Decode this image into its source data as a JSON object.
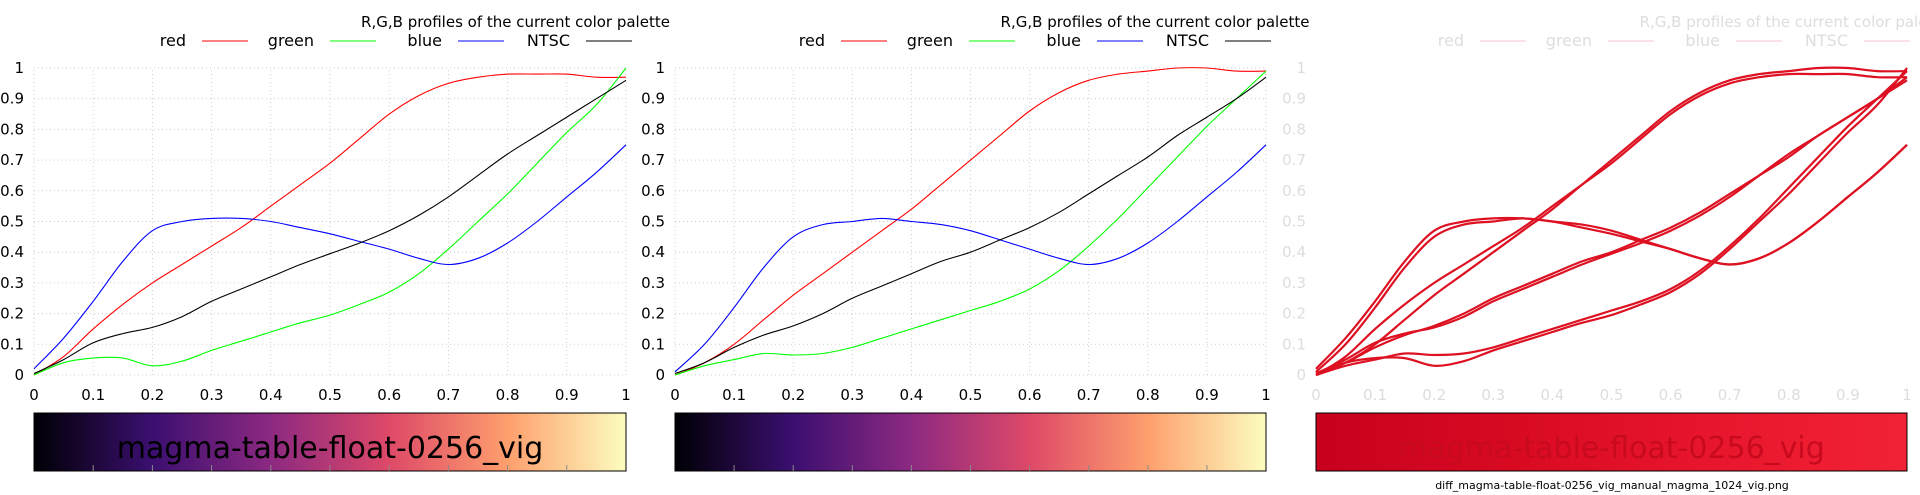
{
  "file_caption": "diff_magma-table-float-0256_vig_manual_magma_1024_vig.png",
  "colors": {
    "red": "#ff0000",
    "green": "#00ff00",
    "blue": "#0000ff",
    "ntsc": "#000000",
    "diff": "#dd1122",
    "grid": "#cccccc",
    "faded_text": "#dddddd"
  },
  "chart_data": [
    {
      "type": "line",
      "title": "R,G,B profiles of the current color palette",
      "xlabel": "",
      "ylabel": "",
      "xlim": [
        0,
        1
      ],
      "ylim": [
        0,
        1
      ],
      "grid": true,
      "legend_position": "top",
      "ticks": {
        "x": [
          "0",
          "0.1",
          "0.2",
          "0.3",
          "0.4",
          "0.5",
          "0.6",
          "0.7",
          "0.8",
          "0.9",
          "1"
        ],
        "y": [
          "0",
          "0.1",
          "0.2",
          "0.3",
          "0.4",
          "0.5",
          "0.6",
          "0.7",
          "0.8",
          "0.9",
          "1"
        ]
      },
      "x": [
        0,
        0.05,
        0.1,
        0.15,
        0.2,
        0.25,
        0.3,
        0.35,
        0.4,
        0.45,
        0.5,
        0.55,
        0.6,
        0.65,
        0.7,
        0.75,
        0.8,
        0.85,
        0.9,
        0.95,
        1
      ],
      "series": [
        {
          "name": "red",
          "color": "#ff0000",
          "values": [
            0,
            0.06,
            0.15,
            0.23,
            0.3,
            0.36,
            0.42,
            0.48,
            0.55,
            0.62,
            0.69,
            0.77,
            0.85,
            0.91,
            0.95,
            0.97,
            0.98,
            0.98,
            0.98,
            0.97,
            0.97
          ]
        },
        {
          "name": "green",
          "color": "#00ff00",
          "values": [
            0,
            0.04,
            0.055,
            0.055,
            0.03,
            0.045,
            0.08,
            0.11,
            0.14,
            0.17,
            0.195,
            0.23,
            0.27,
            0.33,
            0.41,
            0.5,
            0.59,
            0.69,
            0.79,
            0.88,
            1.0
          ]
        },
        {
          "name": "blue",
          "color": "#0000ff",
          "values": [
            0.02,
            0.12,
            0.24,
            0.37,
            0.47,
            0.5,
            0.51,
            0.51,
            0.5,
            0.48,
            0.46,
            0.435,
            0.41,
            0.38,
            0.36,
            0.38,
            0.43,
            0.5,
            0.58,
            0.66,
            0.75
          ]
        },
        {
          "name": "NTSC",
          "color": "#000000",
          "values": [
            0.005,
            0.05,
            0.105,
            0.135,
            0.155,
            0.19,
            0.24,
            0.28,
            0.32,
            0.36,
            0.395,
            0.43,
            0.47,
            0.52,
            0.58,
            0.65,
            0.72,
            0.78,
            0.84,
            0.9,
            0.96
          ]
        }
      ],
      "colorbar": {
        "label": "magma-table-float-0256_vig",
        "stops": [
          "#000004",
          "#3b0f70",
          "#8c2981",
          "#de4968",
          "#fe9f6d",
          "#fcfdbf"
        ]
      }
    },
    {
      "type": "line",
      "title": "R,G,B profiles of the current color palette",
      "xlabel": "",
      "ylabel": "",
      "xlim": [
        0,
        1
      ],
      "ylim": [
        0,
        1
      ],
      "grid": true,
      "legend_position": "top",
      "ticks": {
        "x": [
          "0",
          "0.1",
          "0.2",
          "0.3",
          "0.4",
          "0.5",
          "0.6",
          "0.7",
          "0.8",
          "0.9",
          "1"
        ],
        "y": [
          "0",
          "0.1",
          "0.2",
          "0.3",
          "0.4",
          "0.5",
          "0.6",
          "0.7",
          "0.8",
          "0.9",
          "1"
        ]
      },
      "x": [
        0,
        0.05,
        0.1,
        0.15,
        0.2,
        0.25,
        0.3,
        0.35,
        0.4,
        0.45,
        0.5,
        0.55,
        0.6,
        0.65,
        0.7,
        0.75,
        0.8,
        0.85,
        0.9,
        0.95,
        1
      ],
      "series": [
        {
          "name": "red",
          "color": "#ff0000",
          "values": [
            0,
            0.04,
            0.1,
            0.18,
            0.26,
            0.33,
            0.4,
            0.47,
            0.54,
            0.62,
            0.7,
            0.78,
            0.86,
            0.92,
            0.96,
            0.98,
            0.99,
            1.0,
            1.0,
            0.99,
            0.99
          ]
        },
        {
          "name": "green",
          "color": "#00ff00",
          "values": [
            0,
            0.03,
            0.05,
            0.07,
            0.065,
            0.07,
            0.09,
            0.12,
            0.15,
            0.18,
            0.21,
            0.24,
            0.28,
            0.34,
            0.42,
            0.51,
            0.61,
            0.71,
            0.81,
            0.9,
            0.99
          ]
        },
        {
          "name": "blue",
          "color": "#0000ff",
          "values": [
            0.01,
            0.1,
            0.22,
            0.35,
            0.45,
            0.49,
            0.5,
            0.51,
            0.5,
            0.49,
            0.47,
            0.44,
            0.41,
            0.38,
            0.36,
            0.38,
            0.43,
            0.5,
            0.58,
            0.66,
            0.75
          ]
        },
        {
          "name": "NTSC",
          "color": "#000000",
          "values": [
            0.005,
            0.04,
            0.09,
            0.13,
            0.16,
            0.2,
            0.25,
            0.29,
            0.33,
            0.37,
            0.4,
            0.44,
            0.48,
            0.53,
            0.59,
            0.65,
            0.71,
            0.78,
            0.84,
            0.9,
            0.97
          ]
        }
      ],
      "colorbar": {
        "label": "",
        "stops": [
          "#000004",
          "#3b0f70",
          "#8c2981",
          "#de4968",
          "#fe9f6d",
          "#fcfdbf"
        ]
      }
    },
    {
      "type": "line",
      "title": "R,G,B profiles of the current color palette",
      "xlabel": "",
      "ylabel": "",
      "xlim": [
        0,
        1
      ],
      "ylim": [
        0,
        1
      ],
      "grid": false,
      "legend_position": "top",
      "faded": true,
      "ticks": {
        "x": [
          "0",
          "0.1",
          "0.2",
          "0.3",
          "0.4",
          "0.5",
          "0.6",
          "0.7",
          "0.8",
          "0.9",
          "1"
        ],
        "y": [
          "0",
          "0.1",
          "0.2",
          "0.3",
          "0.4",
          "0.5",
          "0.6",
          "0.7",
          "0.8",
          "0.9",
          "1"
        ]
      },
      "legend": [
        "red",
        "green",
        "blue",
        "NTSC"
      ],
      "series_color": "#dd1122",
      "overlay_of_panels": [
        0,
        1
      ],
      "colorbar": {
        "label": "magma-table-float-0256_vig",
        "stops": [
          "#c8001e",
          "#d80a22",
          "#e8162c",
          "#f22236"
        ]
      }
    }
  ]
}
